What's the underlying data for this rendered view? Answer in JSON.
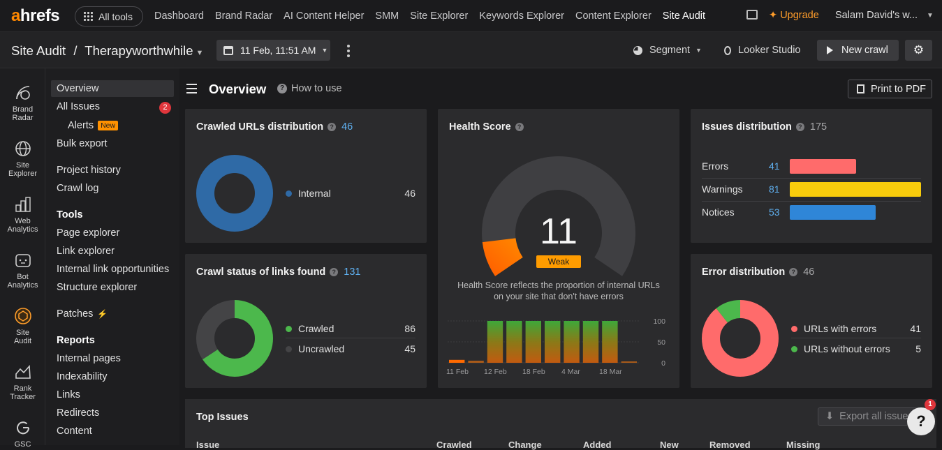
{
  "topnav": {
    "logo_a": "a",
    "logo_rest": "hrefs",
    "all_tools": "All tools",
    "links": [
      "Dashboard",
      "Brand Radar",
      "AI Content Helper",
      "SMM",
      "Site Explorer",
      "Keywords Explorer",
      "Content Explorer",
      "Site Audit"
    ],
    "upgrade": "Upgrade",
    "user": "Salam David's w..."
  },
  "subhead": {
    "section": "Site Audit",
    "separator": "/",
    "project": "Therapyworthwhile",
    "date": "11 Feb, 11:51 AM",
    "segment": "Segment",
    "looker": "Looker Studio",
    "new_crawl": "New crawl"
  },
  "rail": [
    {
      "label1": "Brand",
      "label2": "Radar",
      "icon": "brand-radar-icon"
    },
    {
      "label1": "Site",
      "label2": "Explorer",
      "icon": "globe-icon"
    },
    {
      "label1": "Web",
      "label2": "Analytics",
      "icon": "bar-chart-icon"
    },
    {
      "label1": "Bot",
      "label2": "Analytics",
      "icon": "bot-icon"
    },
    {
      "label1": "Site",
      "label2": "Audit",
      "icon": "site-audit-icon"
    },
    {
      "label1": "Rank",
      "label2": "Tracker",
      "icon": "rank-tracker-icon"
    },
    {
      "label1": "GSC",
      "label2": "",
      "icon": "google-icon"
    }
  ],
  "sidebar": {
    "overview": "Overview",
    "all_issues": "All Issues",
    "all_issues_badge": "2",
    "alerts": "Alerts",
    "alerts_tag": "New",
    "bulk_export": "Bulk export",
    "project_history": "Project history",
    "crawl_log": "Crawl log",
    "tools_head": "Tools",
    "page_explorer": "Page explorer",
    "link_explorer": "Link explorer",
    "internal_link_opps": "Internal link opportunities",
    "structure_explorer": "Structure explorer",
    "patches": "Patches",
    "reports_head": "Reports",
    "internal_pages": "Internal pages",
    "indexability": "Indexability",
    "links": "Links",
    "redirects": "Redirects",
    "content": "Content"
  },
  "main": {
    "title": "Overview",
    "how_to_use": "How to use",
    "print_pdf": "Print to PDF"
  },
  "crawled_urls": {
    "title": "Crawled URLs distribution",
    "total": "46",
    "items": [
      {
        "label": "Internal",
        "value": 46,
        "color": "#2f6aa6"
      }
    ]
  },
  "crawl_status": {
    "title": "Crawl status of links found",
    "total": "131",
    "items": [
      {
        "label": "Crawled",
        "value": 86,
        "color": "#4cb84c"
      },
      {
        "label": "Uncrawled",
        "value": 45,
        "color": "#444446"
      }
    ]
  },
  "health": {
    "title": "Health Score",
    "score": "11",
    "rating": "Weak",
    "description": "Health Score reflects the proportion of internal URLs on your site that don't have errors",
    "score_fraction": 0.11,
    "y_ticks": [
      "100",
      "50",
      "0"
    ],
    "x_ticks": [
      "11 Feb",
      "12 Feb",
      "18 Feb",
      "4 Mar",
      "18 Mar"
    ],
    "history": [
      7,
      5,
      100,
      100,
      100,
      100,
      100,
      100,
      100,
      2
    ]
  },
  "issues_dist": {
    "title": "Issues distribution",
    "total": "175",
    "rows": [
      {
        "label": "Errors",
        "value": 41,
        "color": "#ff6b6b"
      },
      {
        "label": "Warnings",
        "value": 81,
        "color": "#f8cc0c"
      },
      {
        "label": "Notices",
        "value": 53,
        "color": "#2f86d8"
      }
    ]
  },
  "error_dist": {
    "title": "Error distribution",
    "total": "46",
    "items": [
      {
        "label": "URLs with errors",
        "value": 41,
        "color": "#ff6b6b"
      },
      {
        "label": "URLs without errors",
        "value": 5,
        "color": "#4cb84c"
      }
    ]
  },
  "top_issues": {
    "title": "Top Issues",
    "export": "Export all issues",
    "columns": [
      "Issue",
      "Crawled",
      "Change",
      "Added",
      "New",
      "Removed",
      "Missing"
    ]
  },
  "help": {
    "label": "?",
    "badge": "1"
  }
}
